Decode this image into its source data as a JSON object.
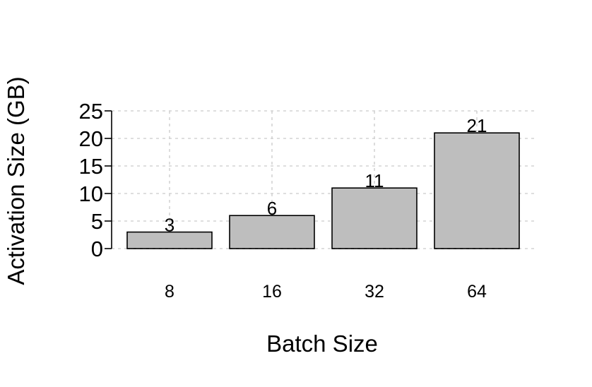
{
  "chart_data": {
    "type": "bar",
    "categories": [
      "8",
      "16",
      "32",
      "64"
    ],
    "values": [
      3,
      6,
      11,
      21
    ],
    "data_labels": [
      "3",
      "6",
      "11",
      "21"
    ],
    "xlabel": "Batch Size",
    "ylabel": "Activation Size (GB)",
    "ylim": [
      0,
      25
    ],
    "yticks": [
      0,
      5,
      10,
      15,
      20,
      25
    ],
    "ytick_labels": [
      "0",
      "5",
      "10",
      "15",
      "20",
      "25"
    ],
    "grid": true,
    "bar_color": "#bebebe",
    "bar_edge_color": "#000000",
    "grid_color": "#d3d3d3"
  }
}
